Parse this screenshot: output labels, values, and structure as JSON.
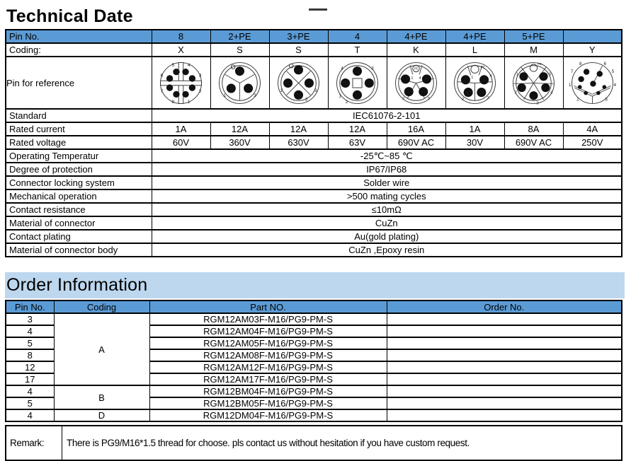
{
  "colors": {
    "header_blue": "#5B9BD5",
    "band_blue": "#BDD7EE",
    "border": "#000000"
  },
  "technical": {
    "title": "Technical Date",
    "pin_header": {
      "label": "Pin No.",
      "values": [
        "8",
        "2+PE",
        "3+PE",
        "4",
        "4+PE",
        "4+PE",
        "5+PE",
        ""
      ]
    },
    "coding": {
      "label": "Coding:",
      "values": [
        "X",
        "S",
        "S",
        "T",
        "K",
        "L",
        "M",
        "Y"
      ]
    },
    "pin_reference_label": "Pin for reference",
    "connector_icons": [
      "connector-x-8pin",
      "connector-s-2pe",
      "connector-s-3pe",
      "connector-t-4pin",
      "connector-k-4pe",
      "connector-l-4pe",
      "connector-m-5pe",
      "connector-y-8pin"
    ],
    "spec_rows": [
      {
        "label": "Standard",
        "span": "IEC61076-2-101"
      },
      {
        "label": "Rated current",
        "cells": [
          "1A",
          "12A",
          "12A",
          "12A",
          "16A",
          "1A",
          "8A",
          "4A"
        ]
      },
      {
        "label": "Rated voltage",
        "cells": [
          "60V",
          "360V",
          "630V",
          "63V",
          "690V AC",
          "30V",
          "690V AC",
          "250V"
        ]
      },
      {
        "label": "Operating Temperatur",
        "span": "-25℃~85 ℃"
      },
      {
        "label": "Degree of protection",
        "span": "IP67/IP68"
      },
      {
        "label": "Connector locking system",
        "span": "Solder wire"
      },
      {
        "label": "Mechanical operation",
        "span": ">500 mating cycles"
      },
      {
        "label": "Contact resistance",
        "span": "≤10mΩ"
      },
      {
        "label": "Material of connector",
        "span": "CuZn"
      },
      {
        "label": "Contact plating",
        "span": "Au(gold plating)"
      },
      {
        "label": "Material of connector body",
        "span": "CuZn ,Epoxy resin"
      }
    ],
    "connectors": [
      [
        [
          "c",
          38,
          38,
          31,
          "o"
        ],
        [
          "r",
          34.5,
          7,
          7,
          62
        ],
        [
          "r",
          7,
          34.5,
          62,
          7
        ],
        [
          "c",
          55,
          31,
          5,
          "f"
        ],
        [
          "c",
          45,
          21,
          5,
          "f"
        ],
        [
          "c",
          31,
          21,
          5,
          "f"
        ],
        [
          "c",
          21,
          31,
          5,
          "f"
        ],
        [
          "c",
          21,
          45,
          5,
          "f"
        ],
        [
          "c",
          31,
          55,
          5,
          "f"
        ],
        [
          "c",
          45,
          55,
          5,
          "f"
        ],
        [
          "c",
          55,
          45,
          5,
          "f"
        ],
        [
          "t",
          67,
          27,
          7,
          "3"
        ],
        [
          "t",
          50,
          11,
          7,
          "4"
        ],
        [
          "t",
          26,
          11,
          7,
          "5"
        ],
        [
          "t",
          9,
          27,
          7,
          "6"
        ],
        [
          "t",
          9,
          51,
          7,
          "7"
        ],
        [
          "t",
          26,
          67,
          7,
          "8"
        ],
        [
          "t",
          50,
          67,
          7,
          "1"
        ],
        [
          "t",
          67,
          51,
          7,
          "2"
        ]
      ],
      [
        [
          "c",
          38,
          38,
          31,
          "o"
        ],
        [
          "c",
          38,
          38,
          26.5,
          "o"
        ],
        [
          "l",
          38,
          38,
          16,
          25
        ],
        [
          "l",
          38,
          38,
          60,
          25
        ],
        [
          "l",
          38,
          38,
          38,
          64
        ],
        [
          "c",
          28,
          13.5,
          3,
          "o"
        ],
        [
          "c",
          38,
          20,
          7,
          "f"
        ],
        [
          "c",
          25,
          46,
          7,
          "f"
        ],
        [
          "c",
          51,
          46,
          7,
          "f"
        ],
        [
          "t",
          15,
          57,
          7,
          "1"
        ],
        [
          "t",
          61,
          57,
          7,
          "3"
        ]
      ],
      [
        [
          "c",
          38,
          38,
          31,
          "o"
        ],
        [
          "c",
          38,
          38,
          26.5,
          "o"
        ],
        [
          "l",
          38,
          38,
          20,
          20
        ],
        [
          "l",
          38,
          38,
          56,
          20
        ],
        [
          "l",
          38,
          38,
          20,
          56
        ],
        [
          "l",
          38,
          38,
          56,
          56
        ],
        [
          "c",
          27,
          12,
          3,
          "o"
        ],
        [
          "c",
          38,
          18,
          7,
          "f"
        ],
        [
          "c",
          22,
          38,
          7,
          "f"
        ],
        [
          "c",
          54,
          38,
          7,
          "f"
        ],
        [
          "c",
          38,
          56,
          7,
          "f"
        ],
        [
          "t",
          12,
          50,
          7,
          "1"
        ],
        [
          "t",
          64,
          50,
          7,
          "3"
        ],
        [
          "t",
          50,
          63,
          7,
          "2"
        ]
      ],
      [
        [
          "c",
          38,
          38,
          31,
          "o"
        ],
        [
          "c",
          38,
          38,
          26.5,
          "o"
        ],
        [
          "r",
          31,
          31,
          14,
          14
        ],
        [
          "c",
          38,
          20,
          7,
          "f"
        ],
        [
          "c",
          56,
          38,
          7,
          "f"
        ],
        [
          "c",
          38,
          56,
          7,
          "f"
        ],
        [
          "c",
          20,
          38,
          7,
          "f"
        ],
        [
          "t",
          15,
          16,
          7,
          "4"
        ],
        [
          "t",
          61,
          16,
          7,
          "3"
        ],
        [
          "t",
          12,
          58,
          7,
          "1"
        ],
        [
          "t",
          22,
          67,
          7,
          "2"
        ]
      ],
      [
        [
          "c",
          38,
          38,
          31,
          "o"
        ],
        [
          "c",
          38,
          38,
          26.5,
          "o"
        ],
        [
          "l",
          38,
          38,
          11,
          31
        ],
        [
          "l",
          38,
          38,
          65,
          31
        ],
        [
          "l",
          38,
          38,
          25,
          61
        ],
        [
          "l",
          38,
          38,
          51,
          61
        ],
        [
          "l",
          29,
          11,
          33,
          25
        ],
        [
          "l",
          47,
          11,
          43,
          25
        ],
        [
          "c",
          38,
          16,
          5,
          "o"
        ],
        [
          "t",
          38,
          16,
          4.5,
          "PE"
        ],
        [
          "c",
          22,
          32,
          7,
          "f"
        ],
        [
          "c",
          54,
          32,
          7,
          "f"
        ],
        [
          "c",
          27,
          51,
          7,
          "f"
        ],
        [
          "c",
          49,
          51,
          7,
          "f"
        ],
        [
          "t",
          32,
          31,
          6,
          "1"
        ],
        [
          "t",
          44,
          31,
          6,
          "4"
        ],
        [
          "t",
          19,
          62,
          6,
          "2"
        ],
        [
          "t",
          57,
          62,
          6,
          "3"
        ]
      ],
      [
        [
          "c",
          38,
          38,
          31,
          "o"
        ],
        [
          "c",
          38,
          38,
          26.5,
          "o"
        ],
        [
          "l",
          38,
          38,
          12,
          36
        ],
        [
          "l",
          38,
          38,
          64,
          36
        ],
        [
          "l",
          38,
          38,
          38,
          64
        ],
        [
          "l",
          27,
          12,
          32,
          26
        ],
        [
          "l",
          49,
          12,
          44,
          26
        ],
        [
          "c",
          38,
          17,
          6,
          "o"
        ],
        [
          "t",
          50,
          14,
          5,
          "PE"
        ],
        [
          "c",
          24,
          33,
          7,
          "f"
        ],
        [
          "c",
          52,
          33,
          7,
          "f"
        ],
        [
          "c",
          28,
          52,
          7,
          "f"
        ],
        [
          "c",
          48,
          52,
          7,
          "f"
        ],
        [
          "t",
          34,
          30,
          6,
          "1"
        ],
        [
          "t",
          62,
          28,
          6,
          "4"
        ],
        [
          "t",
          20,
          63,
          6,
          "2"
        ],
        [
          "t",
          58,
          61,
          6,
          "3"
        ]
      ],
      [
        [
          "c",
          38,
          38,
          31,
          "o"
        ],
        [
          "c",
          38,
          38,
          26.5,
          "o"
        ],
        [
          "l",
          38,
          38,
          19,
          14
        ],
        [
          "l",
          38,
          38,
          57,
          14
        ],
        [
          "l",
          38,
          38,
          8,
          39
        ],
        [
          "l",
          38,
          38,
          68,
          39
        ],
        [
          "l",
          38,
          38,
          23,
          63
        ],
        [
          "l",
          38,
          38,
          53,
          63
        ],
        [
          "c",
          38,
          15,
          5.5,
          "o"
        ],
        [
          "t",
          47,
          9,
          5,
          "PE"
        ],
        [
          "c",
          23,
          28,
          6.5,
          "f"
        ],
        [
          "c",
          53,
          28,
          6.5,
          "f"
        ],
        [
          "c",
          20,
          45,
          6.5,
          "f"
        ],
        [
          "c",
          56,
          45,
          6.5,
          "f"
        ],
        [
          "c",
          38,
          57,
          6.5,
          "f"
        ],
        [
          "t",
          13,
          25,
          6,
          "1"
        ],
        [
          "t",
          63,
          25,
          6,
          "5"
        ],
        [
          "t",
          11,
          53,
          6,
          "2"
        ],
        [
          "t",
          65,
          53,
          6,
          "4"
        ],
        [
          "t",
          44,
          69,
          6,
          "3"
        ]
      ],
      [
        [
          "c",
          38,
          38,
          31,
          "o"
        ],
        [
          "l",
          10,
          42,
          38,
          55
        ],
        [
          "l",
          38,
          55,
          66,
          42
        ],
        [
          "l",
          11,
          45,
          38,
          58
        ],
        [
          "l",
          38,
          58,
          65,
          45
        ],
        [
          "l",
          38,
          58,
          38,
          69
        ],
        [
          "l",
          53,
          12,
          41,
          35
        ],
        [
          "c",
          29,
          21,
          4.5,
          "f"
        ],
        [
          "c",
          49,
          24,
          4.5,
          "f"
        ],
        [
          "c",
          21,
          32,
          4.5,
          "f"
        ],
        [
          "c",
          39,
          39,
          4.5,
          "f"
        ],
        [
          "c",
          19,
          44,
          3,
          "f"
        ],
        [
          "c",
          28,
          53,
          3,
          "f"
        ],
        [
          "c",
          47,
          53,
          3,
          "f"
        ],
        [
          "c",
          56,
          44,
          3,
          "f"
        ],
        [
          "t",
          20,
          9,
          7,
          "8"
        ],
        [
          "t",
          57,
          9,
          7,
          "6"
        ],
        [
          "t",
          7,
          21,
          7,
          "7"
        ],
        [
          "t",
          69,
          21,
          7,
          "5"
        ],
        [
          "t",
          4,
          41,
          7,
          "1"
        ],
        [
          "t",
          72,
          41,
          7,
          "4"
        ],
        [
          "t",
          16,
          63,
          7,
          "2"
        ],
        [
          "t",
          59,
          63,
          7,
          "3"
        ]
      ]
    ]
  },
  "order": {
    "title": "Order Information",
    "headers": [
      "Pin No.",
      "Coding",
      "Part NO.",
      "Order No."
    ],
    "groups": [
      {
        "coding": "A",
        "rows": [
          {
            "pin": "3",
            "part": "RGM12AM03F-M16/PG9-PM-S",
            "order_no": ""
          },
          {
            "pin": "4",
            "part": "RGM12AM04F-M16/PG9-PM-S",
            "order_no": ""
          },
          {
            "pin": "5",
            "part": "RGM12AM05F-M16/PG9-PM-S",
            "order_no": ""
          },
          {
            "pin": "8",
            "part": "RGM12AM08F-M16/PG9-PM-S",
            "order_no": ""
          },
          {
            "pin": "12",
            "part": "RGM12AM12F-M16/PG9-PM-S",
            "order_no": ""
          },
          {
            "pin": "17",
            "part": "RGM12AM17F-M16/PG9-PM-S",
            "order_no": ""
          }
        ]
      },
      {
        "coding": "B",
        "rows": [
          {
            "pin": "4",
            "part": "RGM12BM04F-M16/PG9-PM-S",
            "order_no": ""
          },
          {
            "pin": "5",
            "part": "RGM12BM05F-M16/PG9-PM-S",
            "order_no": ""
          }
        ]
      },
      {
        "coding": "D",
        "rows": [
          {
            "pin": "4",
            "part": "RGM12DM04F-M16/PG9-PM-S",
            "order_no": ""
          }
        ]
      }
    ]
  },
  "remark": {
    "label": "Remark:",
    "text": "There is PG9/M16*1.5 thread for choose. pls contact us without hesitation if you have custom request."
  }
}
